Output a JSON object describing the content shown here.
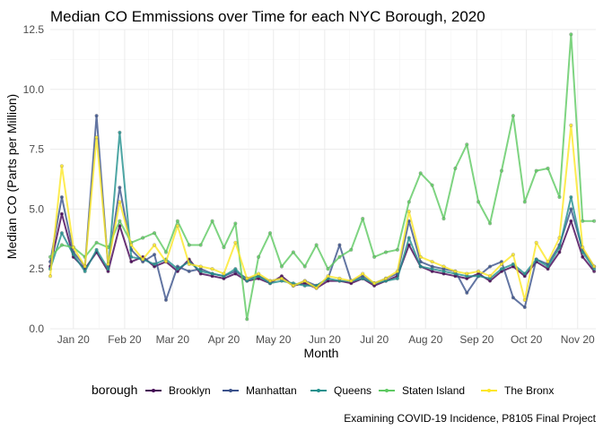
{
  "chart_data": {
    "type": "line",
    "title": "Median CO Emmissions over Time for each NYC Borough, 2020",
    "xlabel": "Month",
    "ylabel": "Median CO (Parts per Million)",
    "caption": "Examining COVID-19 Incidence, P8105 Final Project",
    "legend_title": "borough",
    "legend_position": "bottom",
    "grid": true,
    "x_type": "date",
    "xlim": [
      "2020-01-01",
      "2020-11-26"
    ],
    "ylim": [
      0,
      12.5
    ],
    "x_ticks": [
      {
        "date": "2020-01-15",
        "label": "Jan 20"
      },
      {
        "date": "2020-02-15",
        "label": "Feb 20"
      },
      {
        "date": "2020-03-15",
        "label": "Mar 20"
      },
      {
        "date": "2020-04-15",
        "label": "Apr 20"
      },
      {
        "date": "2020-05-15",
        "label": "May 20"
      },
      {
        "date": "2020-06-15",
        "label": "Jun 20"
      },
      {
        "date": "2020-07-15",
        "label": "Jul 20"
      },
      {
        "date": "2020-08-15",
        "label": "Aug 20"
      },
      {
        "date": "2020-09-15",
        "label": "Sep 20"
      },
      {
        "date": "2020-10-15",
        "label": "Oct 20"
      },
      {
        "date": "2020-11-15",
        "label": "Nov 20"
      }
    ],
    "y_ticks": [
      {
        "value": 0,
        "label": "0.0"
      },
      {
        "value": 2.5,
        "label": "2.5"
      },
      {
        "value": 5,
        "label": "5.0"
      },
      {
        "value": 7.5,
        "label": "7.5"
      },
      {
        "value": 10,
        "label": "10.0"
      },
      {
        "value": 12.5,
        "label": "12.5"
      }
    ],
    "series": [
      {
        "name": "Brooklyn",
        "color": "#440154",
        "x": [
          "2020-01-01",
          "2020-01-08",
          "2020-01-15",
          "2020-01-22",
          "2020-01-29",
          "2020-02-05",
          "2020-02-12",
          "2020-02-19",
          "2020-02-26",
          "2020-03-04",
          "2020-03-11",
          "2020-03-18",
          "2020-03-25",
          "2020-04-01",
          "2020-04-08",
          "2020-04-15",
          "2020-04-22",
          "2020-04-29",
          "2020-05-06",
          "2020-05-13",
          "2020-05-20",
          "2020-05-27",
          "2020-06-03",
          "2020-06-10",
          "2020-06-17",
          "2020-06-24",
          "2020-07-01",
          "2020-07-08",
          "2020-07-15",
          "2020-07-22",
          "2020-07-29",
          "2020-08-05",
          "2020-08-12",
          "2020-08-19",
          "2020-08-26",
          "2020-09-02",
          "2020-09-09",
          "2020-09-16",
          "2020-09-23",
          "2020-09-30",
          "2020-10-07",
          "2020-10-14",
          "2020-10-21",
          "2020-10-28",
          "2020-11-04",
          "2020-11-11",
          "2020-11-18",
          "2020-11-25"
        ],
        "y": [
          2.6,
          4.8,
          3.0,
          2.5,
          3.2,
          2.4,
          4.3,
          2.8,
          3.0,
          2.6,
          2.8,
          2.4,
          2.9,
          2.3,
          2.2,
          2.1,
          2.3,
          2.0,
          2.1,
          1.9,
          2.2,
          1.8,
          1.9,
          1.7,
          2.0,
          2.0,
          1.9,
          2.1,
          1.8,
          2.0,
          2.2,
          3.5,
          2.6,
          2.4,
          2.3,
          2.2,
          2.1,
          2.3,
          2.0,
          2.4,
          2.6,
          2.2,
          2.8,
          2.5,
          3.2,
          4.5,
          3.0,
          2.4
        ]
      },
      {
        "name": "Manhattan",
        "color": "#3b528b",
        "x": [
          "2020-01-01",
          "2020-01-08",
          "2020-01-15",
          "2020-01-22",
          "2020-01-29",
          "2020-02-05",
          "2020-02-12",
          "2020-02-19",
          "2020-02-26",
          "2020-03-04",
          "2020-03-11",
          "2020-03-18",
          "2020-03-25",
          "2020-04-01",
          "2020-04-08",
          "2020-04-15",
          "2020-04-22",
          "2020-04-29",
          "2020-05-06",
          "2020-05-13",
          "2020-05-20",
          "2020-05-27",
          "2020-06-03",
          "2020-06-10",
          "2020-06-17",
          "2020-06-24",
          "2020-07-01",
          "2020-07-08",
          "2020-07-15",
          "2020-07-22",
          "2020-07-29",
          "2020-08-05",
          "2020-08-12",
          "2020-08-19",
          "2020-08-26",
          "2020-09-02",
          "2020-09-09",
          "2020-09-16",
          "2020-09-23",
          "2020-09-30",
          "2020-10-07",
          "2020-10-14",
          "2020-10-21",
          "2020-10-28",
          "2020-11-04",
          "2020-11-11",
          "2020-11-18",
          "2020-11-25"
        ],
        "y": [
          2.8,
          5.5,
          3.2,
          2.6,
          8.9,
          2.6,
          5.9,
          3.3,
          2.8,
          3.1,
          1.2,
          2.6,
          2.4,
          2.5,
          2.3,
          2.2,
          2.4,
          2.1,
          2.2,
          2.0,
          2.1,
          1.8,
          2.0,
          1.8,
          2.1,
          3.5,
          2.0,
          2.2,
          1.9,
          2.1,
          2.3,
          4.5,
          2.8,
          2.6,
          2.5,
          2.4,
          1.5,
          2.2,
          2.6,
          2.8,
          1.3,
          0.9,
          2.9,
          2.7,
          3.5,
          5.0,
          3.3,
          2.6
        ]
      },
      {
        "name": "Queens",
        "color": "#21908d",
        "x": [
          "2020-01-01",
          "2020-01-08",
          "2020-01-15",
          "2020-01-22",
          "2020-01-29",
          "2020-02-05",
          "2020-02-12",
          "2020-02-19",
          "2020-02-26",
          "2020-03-04",
          "2020-03-11",
          "2020-03-18",
          "2020-03-25",
          "2020-04-01",
          "2020-04-08",
          "2020-04-15",
          "2020-04-22",
          "2020-04-29",
          "2020-05-06",
          "2020-05-13",
          "2020-05-20",
          "2020-05-27",
          "2020-06-03",
          "2020-06-10",
          "2020-06-17",
          "2020-06-24",
          "2020-07-01",
          "2020-07-08",
          "2020-07-15",
          "2020-07-22",
          "2020-07-29",
          "2020-08-05",
          "2020-08-12",
          "2020-08-19",
          "2020-08-26",
          "2020-09-02",
          "2020-09-09",
          "2020-09-16",
          "2020-09-23",
          "2020-09-30",
          "2020-10-07",
          "2020-10-14",
          "2020-10-21",
          "2020-10-28",
          "2020-11-04",
          "2020-11-11",
          "2020-11-18",
          "2020-11-25"
        ],
        "y": [
          2.5,
          4.0,
          3.1,
          2.4,
          3.3,
          2.5,
          8.2,
          3.0,
          2.9,
          2.7,
          2.9,
          2.5,
          2.8,
          2.4,
          2.3,
          2.2,
          2.5,
          2.0,
          2.2,
          1.9,
          2.0,
          1.9,
          1.8,
          1.8,
          2.1,
          2.0,
          2.0,
          2.1,
          1.9,
          2.0,
          2.1,
          3.8,
          2.6,
          2.5,
          2.4,
          2.3,
          2.2,
          2.2,
          2.1,
          2.5,
          2.7,
          2.3,
          2.9,
          2.6,
          3.4,
          5.5,
          3.2,
          2.5
        ]
      },
      {
        "name": "Staten Island",
        "color": "#5ec962",
        "x": [
          "2020-01-01",
          "2020-01-08",
          "2020-01-15",
          "2020-01-22",
          "2020-01-29",
          "2020-02-05",
          "2020-02-12",
          "2020-02-19",
          "2020-02-26",
          "2020-03-04",
          "2020-03-11",
          "2020-03-18",
          "2020-03-25",
          "2020-04-01",
          "2020-04-08",
          "2020-04-15",
          "2020-04-22",
          "2020-04-29",
          "2020-05-06",
          "2020-05-13",
          "2020-05-20",
          "2020-05-27",
          "2020-06-03",
          "2020-06-10",
          "2020-06-17",
          "2020-06-24",
          "2020-07-01",
          "2020-07-08",
          "2020-07-15",
          "2020-07-22",
          "2020-07-29",
          "2020-08-05",
          "2020-08-12",
          "2020-08-19",
          "2020-08-26",
          "2020-09-02",
          "2020-09-09",
          "2020-09-16",
          "2020-09-23",
          "2020-09-30",
          "2020-10-07",
          "2020-10-14",
          "2020-10-21",
          "2020-10-28",
          "2020-11-04",
          "2020-11-11",
          "2020-11-18",
          "2020-11-25"
        ],
        "y": [
          3.0,
          3.5,
          3.4,
          3.0,
          3.6,
          3.4,
          4.5,
          3.6,
          3.8,
          4.0,
          3.2,
          4.5,
          3.5,
          3.5,
          4.5,
          3.4,
          4.4,
          0.4,
          3.0,
          4.0,
          2.6,
          3.2,
          2.6,
          3.5,
          2.5,
          3.0,
          3.3,
          4.6,
          3.0,
          3.2,
          3.3,
          5.3,
          6.5,
          6.0,
          4.6,
          6.7,
          7.7,
          5.3,
          4.4,
          6.6,
          8.9,
          5.3,
          6.6,
          6.7,
          5.5,
          12.3,
          4.5,
          4.5
        ]
      },
      {
        "name": "The Bronx",
        "color": "#fde725",
        "x": [
          "2020-01-01",
          "2020-01-08",
          "2020-01-15",
          "2020-01-22",
          "2020-01-29",
          "2020-02-05",
          "2020-02-12",
          "2020-02-19",
          "2020-02-26",
          "2020-03-04",
          "2020-03-11",
          "2020-03-18",
          "2020-03-25",
          "2020-04-01",
          "2020-04-08",
          "2020-04-15",
          "2020-04-22",
          "2020-04-29",
          "2020-05-06",
          "2020-05-13",
          "2020-05-20",
          "2020-05-27",
          "2020-06-03",
          "2020-06-10",
          "2020-06-17",
          "2020-06-24",
          "2020-07-01",
          "2020-07-08",
          "2020-07-15",
          "2020-07-22",
          "2020-07-29",
          "2020-08-05",
          "2020-08-12",
          "2020-08-19",
          "2020-08-26",
          "2020-09-02",
          "2020-09-09",
          "2020-09-16",
          "2020-09-23",
          "2020-09-30",
          "2020-10-07",
          "2020-10-14",
          "2020-10-21",
          "2020-10-28",
          "2020-11-04",
          "2020-11-11",
          "2020-11-18",
          "2020-11-25"
        ],
        "y": [
          2.2,
          6.8,
          3.4,
          2.6,
          8.0,
          2.7,
          5.3,
          3.5,
          2.9,
          3.5,
          2.8,
          4.3,
          2.7,
          2.6,
          2.5,
          2.3,
          3.6,
          2.1,
          2.3,
          2.0,
          2.1,
          1.8,
          2.0,
          1.7,
          2.2,
          2.1,
          2.0,
          2.3,
          1.9,
          2.1,
          2.4,
          4.9,
          3.0,
          2.8,
          2.6,
          2.4,
          2.3,
          2.4,
          2.2,
          2.7,
          3.1,
          1.2,
          3.6,
          2.8,
          3.8,
          8.5,
          3.4,
          2.6
        ]
      }
    ]
  }
}
